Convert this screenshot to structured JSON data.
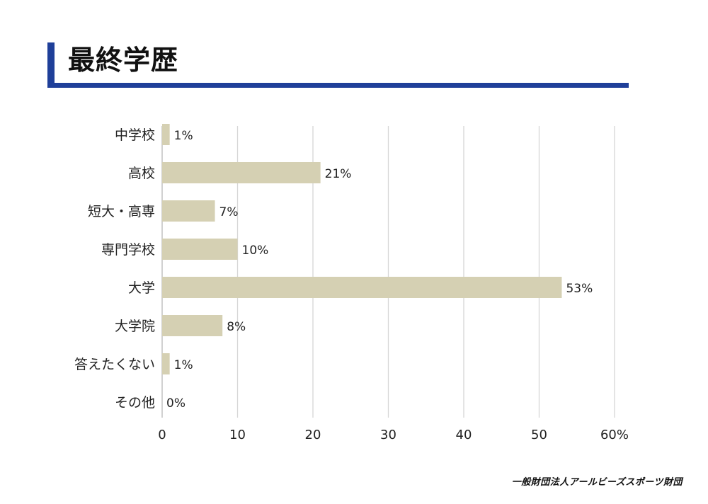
{
  "header": {
    "title": "最終学歴",
    "accent_color": "#1f3f99"
  },
  "chart_data": {
    "type": "bar",
    "orientation": "horizontal",
    "categories": [
      "中学校",
      "高校",
      "短大・高専",
      "専門学校",
      "大学",
      "大学院",
      "答えたくない",
      "その他"
    ],
    "values": [
      1,
      21,
      7,
      10,
      53,
      8,
      1,
      0
    ],
    "value_labels": [
      "1%",
      "21%",
      "7%",
      "10%",
      "53%",
      "8%",
      "1%",
      "0%"
    ],
    "xlim": [
      0,
      60
    ],
    "x_ticks": [
      "0",
      "10",
      "20",
      "30",
      "40",
      "50",
      "60%"
    ],
    "grid": true,
    "bar_color": "#d5d0b3",
    "grid_color": "#d6d6d6",
    "legend": "none"
  },
  "footer": {
    "org": "一般財団法人アールビーズスポーツ財団"
  }
}
